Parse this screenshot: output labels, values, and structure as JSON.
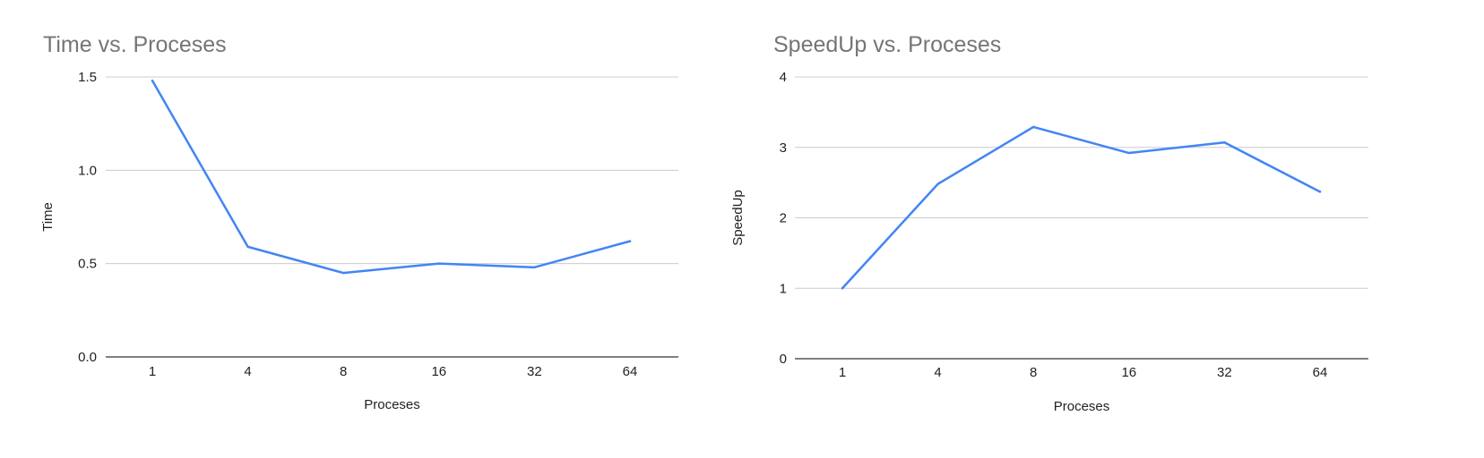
{
  "chart_data": [
    {
      "type": "line",
      "title": "Time vs. Proceses",
      "xlabel": "Proceses",
      "ylabel": "Time",
      "categories": [
        "1",
        "4",
        "8",
        "16",
        "32",
        "64"
      ],
      "series": [
        {
          "values": [
            1.48,
            0.59,
            0.45,
            0.5,
            0.48,
            0.62
          ],
          "color": "#4285f4"
        }
      ],
      "yticks": [
        "0.0",
        "0.5",
        "1.0",
        "1.5"
      ],
      "ylim": [
        0,
        1.5
      ],
      "grid": true,
      "legend": "none"
    },
    {
      "type": "line",
      "title": "SpeedUp vs. Proceses",
      "xlabel": "Proceses",
      "ylabel": "SpeedUp",
      "categories": [
        "1",
        "4",
        "8",
        "16",
        "32",
        "64"
      ],
      "series": [
        {
          "values": [
            1.0,
            2.48,
            3.29,
            2.92,
            3.07,
            2.37
          ],
          "color": "#4285f4"
        }
      ],
      "yticks": [
        "0",
        "1",
        "2",
        "3",
        "4"
      ],
      "ylim": [
        0,
        4
      ],
      "grid": true,
      "legend": "none"
    }
  ]
}
